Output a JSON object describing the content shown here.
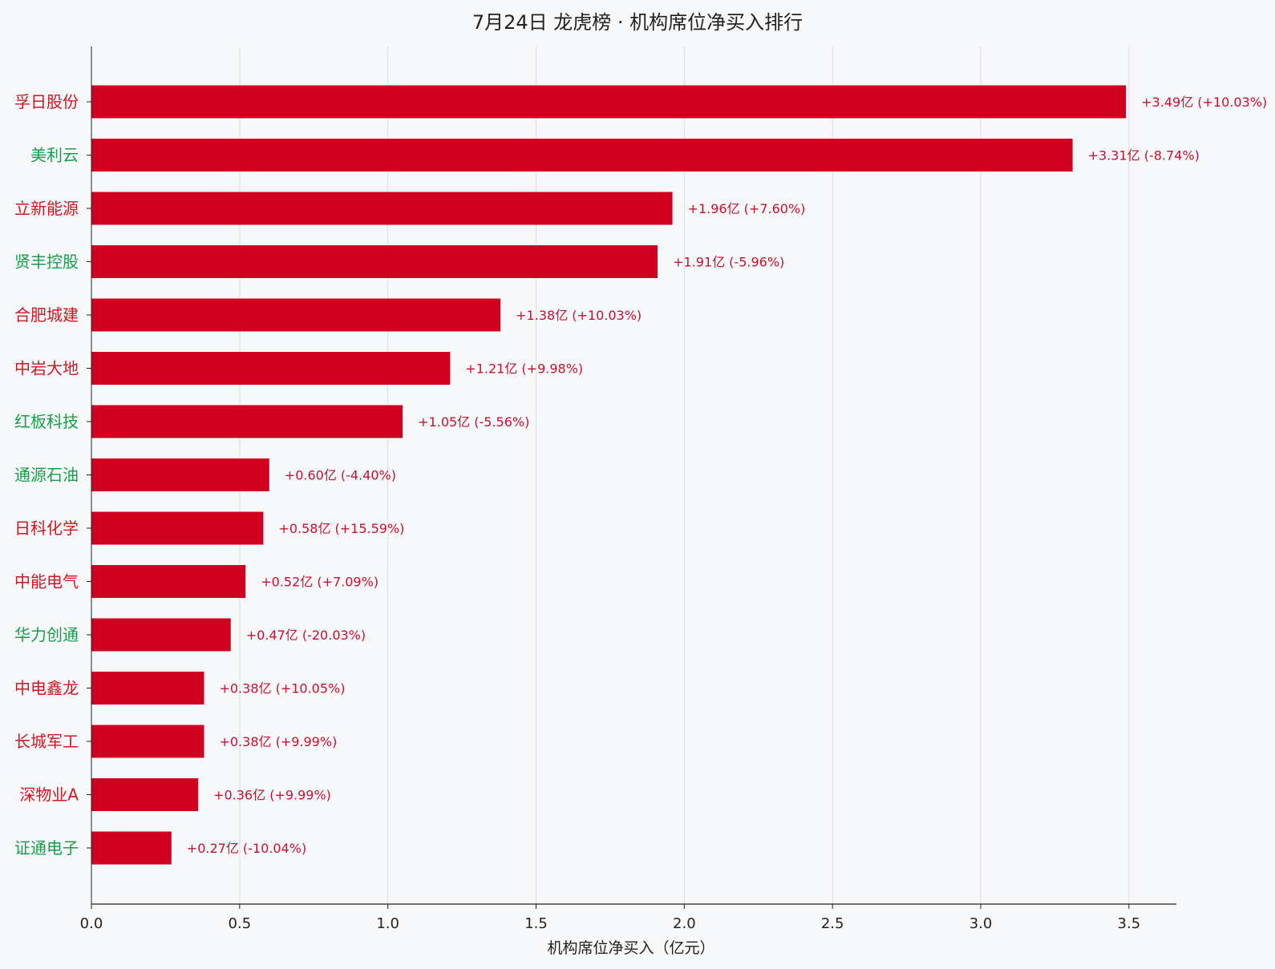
{
  "chart_data": {
    "type": "bar",
    "orientation": "horizontal",
    "title": "7月24日  龙虎榜 · 机构席位净买入排行",
    "xlabel": "机构席位净买入（亿元）",
    "ylabel": "",
    "xlim": [
      0,
      3.66
    ],
    "xticks": [
      "0.0",
      "0.5",
      "1.0",
      "1.5",
      "2.0",
      "2.5",
      "3.0",
      "3.5"
    ],
    "grid": "vertical",
    "categories": [
      "孚日股份",
      "美利云",
      "立新能源",
      "贤丰控股",
      "合肥城建",
      "中岩大地",
      "红板科技",
      "通源石油",
      "日科化学",
      "中能电气",
      "华力创通",
      "中电鑫龙",
      "长城军工",
      "深物业A",
      "证通电子"
    ],
    "values": [
      3.49,
      3.31,
      1.96,
      1.91,
      1.38,
      1.21,
      1.05,
      0.6,
      0.58,
      0.52,
      0.47,
      0.38,
      0.38,
      0.36,
      0.27
    ],
    "value_labels": [
      "+3.49亿  (+10.03%)",
      "+3.31亿  (-8.74%)",
      "+1.96亿  (+7.60%)",
      "+1.91亿  (-5.96%)",
      "+1.38亿  (+10.03%)",
      "+1.21亿  (+9.98%)",
      "+1.05亿  (-5.56%)",
      "+0.60亿  (-4.40%)",
      "+0.58亿  (+15.59%)",
      "+0.52亿  (+7.09%)",
      "+0.47亿  (-20.03%)",
      "+0.38亿  (+10.05%)",
      "+0.38亿  (+9.99%)",
      "+0.36亿  (+9.99%)",
      "+0.27亿  (-10.04%)"
    ],
    "pct_change": [
      10.03,
      -8.74,
      7.6,
      -5.96,
      10.03,
      9.98,
      -5.56,
      -4.4,
      15.59,
      7.09,
      -20.03,
      10.05,
      9.99,
      9.99,
      -10.04
    ],
    "colors": {
      "bar": "#cf0020",
      "value_label": "#c8102e",
      "up": "#d4141f",
      "down": "#14a04a",
      "grid": "#dcdcdc",
      "axis": "#222222",
      "background": "#f7f8fa"
    }
  }
}
